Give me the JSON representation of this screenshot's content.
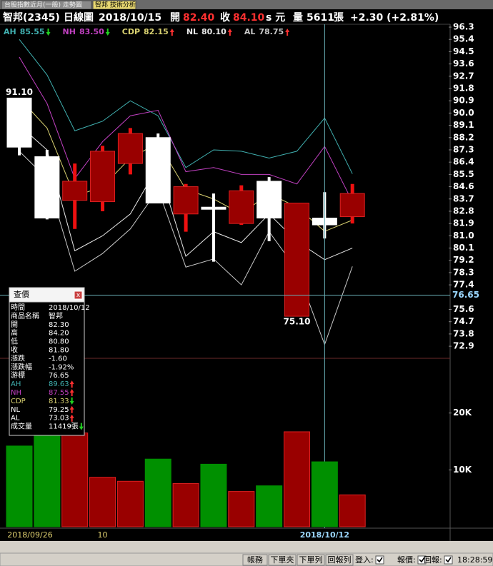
{
  "tabs": [
    "台股指數近月(一般) 走勢圖",
    "智邦 技術分析"
  ],
  "header": {
    "stock": "智邦(2345)",
    "period": "日線圖",
    "date": "2018/10/15",
    "open_label": "開",
    "open": "82.40",
    "close_label": "收",
    "close": "84.10",
    "unit": "s 元",
    "volume_label": "量",
    "volume": "5611",
    "volume_unit": "張",
    "change": "+2.30 (+2.81%)"
  },
  "chart_data": [
    {
      "type": "candlestick",
      "open": [
        91.1,
        86.8,
        83.6,
        83.5,
        86.3,
        88.2,
        82.6,
        83.1,
        81.9,
        85.0,
        75.1,
        82.3,
        82.4
      ],
      "high": [
        91.1,
        87.3,
        86.3,
        87.6,
        88.9,
        88.5,
        84.8,
        84.1,
        84.7,
        85.3,
        83.4,
        84.2,
        84.8
      ],
      "low": [
        86.9,
        82.2,
        81.5,
        82.8,
        85.5,
        83.4,
        81.3,
        79.1,
        81.8,
        80.6,
        75.1,
        80.8,
        81.9
      ],
      "close": [
        87.5,
        82.3,
        85.0,
        87.2,
        88.5,
        83.4,
        84.6,
        83.0,
        84.3,
        82.3,
        83.4,
        81.8,
        84.1
      ],
      "up_color": "#990000",
      "down_color": "#ffffff",
      "series": [
        {
          "name": "AH",
          "color": "#40b0b0",
          "arrow": "down",
          "values": [
            95.4,
            92.8,
            88.7,
            89.4,
            90.9,
            89.8,
            86.0,
            87.3,
            87.2,
            86.7,
            87.2,
            89.63,
            85.55
          ],
          "value_labels": [
            null,
            null,
            null,
            null,
            null,
            null,
            null,
            null,
            null,
            null,
            null,
            null,
            "85.55"
          ]
        },
        {
          "name": "NH",
          "color": "#c040c0",
          "arrow": "down",
          "values": [
            94.1,
            90.7,
            85.2,
            87.9,
            89.8,
            90.2,
            85.7,
            86.0,
            85.5,
            85.5,
            84.8,
            87.55,
            83.5
          ],
          "value_labels": [
            null,
            null,
            null,
            null,
            null,
            null,
            null,
            null,
            null,
            null,
            null,
            null,
            "83.50"
          ]
        },
        {
          "name": "CDP",
          "color": "#d8d070",
          "arrow": "up",
          "values": [
            91.1,
            88.9,
            83.9,
            84.6,
            86.7,
            87.8,
            84.4,
            83.7,
            82.6,
            84.1,
            83.1,
            81.33,
            82.15
          ],
          "value_labels": [
            null,
            null,
            null,
            null,
            null,
            null,
            null,
            null,
            null,
            null,
            null,
            null,
            "82.15"
          ]
        },
        {
          "name": "NL",
          "color": "#e8e8e8",
          "arrow": "up",
          "values": [
            89.1,
            87.3,
            79.9,
            81.0,
            82.6,
            86.1,
            79.5,
            81.3,
            80.5,
            82.6,
            80.6,
            79.25,
            80.1
          ],
          "value_labels": [
            null,
            null,
            null,
            null,
            null,
            null,
            null,
            null,
            null,
            null,
            null,
            null,
            "80.10"
          ]
        },
        {
          "name": "AL",
          "color": "#c8c8c8",
          "arrow": "up",
          "values": [
            87.2,
            85.2,
            78.4,
            79.7,
            81.5,
            84.4,
            78.7,
            79.3,
            77.4,
            81.3,
            78.5,
            73.03,
            78.75
          ],
          "value_labels": [
            null,
            null,
            null,
            null,
            null,
            null,
            null,
            null,
            null,
            null,
            null,
            null,
            "78.75"
          ]
        }
      ],
      "ylim": [
        72.12,
        96.72
      ],
      "yticks": [
        96.3,
        95.4,
        94.5,
        93.6,
        92.7,
        91.8,
        90.9,
        {
          "value": 90,
          "label": "90.0"
        },
        89.1,
        88.2,
        87.3,
        86.4,
        85.5,
        84.6,
        83.7,
        82.8,
        81.9,
        {
          "value": 81,
          "label": "81.0"
        },
        80.1,
        79.2,
        78.3,
        77.4,
        75.6,
        74.7,
        73.8,
        72.9
      ],
      "crosshair": {
        "index": 11,
        "value": 76.65
      },
      "annotations": [
        {
          "index": 0,
          "text": "91.10",
          "at": "high"
        },
        {
          "index": 10,
          "text": "75.10",
          "at": "low"
        }
      ]
    },
    {
      "type": "bar",
      "categories": [
        "2018/09/26",
        null,
        null,
        "10",
        null,
        null,
        null,
        null,
        null,
        null,
        null,
        "2018/10/12",
        null
      ],
      "values": [
        14200,
        16000,
        16500,
        8700,
        8000,
        11900,
        7600,
        11000,
        6200,
        7200,
        16700,
        11419,
        5611
      ],
      "colors": [
        "#009000",
        "#009000",
        "#990000",
        "#990000",
        "#990000",
        "#009000",
        "#990000",
        "#009000",
        "#990000",
        "#009000",
        "#990000",
        "#009000",
        "#990000"
      ],
      "ylim": [
        0,
        29500
      ],
      "yticks": [
        {
          "value": 10000,
          "label": "10K"
        },
        {
          "value": 20000,
          "label": "20K"
        }
      ]
    }
  ],
  "tooltip": {
    "title": "查價",
    "close_button": "x",
    "rows": [
      {
        "label": "時間",
        "value": "2018/10/12"
      },
      {
        "label": "商品名稱",
        "value": "智邦"
      },
      {
        "label": "開",
        "value": "82.30"
      },
      {
        "label": "高",
        "value": "84.20"
      },
      {
        "label": "低",
        "value": "80.80"
      },
      {
        "label": "收",
        "value": "81.80"
      },
      {
        "label": "漲跌",
        "value": "-1.60"
      },
      {
        "label": "漲跌幅",
        "value": "-1.92%"
      },
      {
        "label": "游標",
        "value": "76.65"
      },
      {
        "label": "AH",
        "value": "89.63",
        "color": "#40b0b0",
        "arrow": "up"
      },
      {
        "label": "NH",
        "value": "87.55",
        "color": "#c040c0",
        "arrow": "up"
      },
      {
        "label": "CDP",
        "value": "81.33",
        "color": "#d8d070",
        "arrow": "down"
      },
      {
        "label": "NL",
        "value": "79.25",
        "arrow": "up"
      },
      {
        "label": "AL",
        "value": "73.03",
        "arrow": "up"
      },
      {
        "label": "成交量",
        "value": "11419張",
        "arrow": "down"
      }
    ]
  },
  "status_bar": {
    "buttons": [
      "帳務",
      "下單夾",
      "下單列",
      "回報列"
    ],
    "checks": [
      "登入:",
      "報價:",
      "回報:"
    ],
    "time": "18:28:59"
  }
}
